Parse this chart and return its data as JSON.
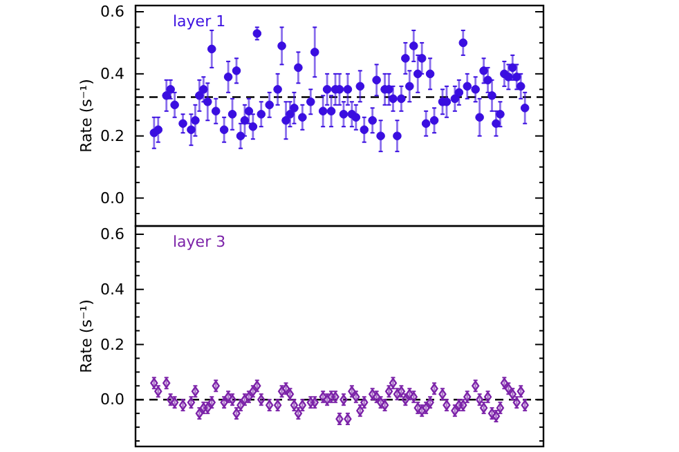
{
  "chart_data": [
    {
      "type": "scatter",
      "ylabel": "Rate (s⁻¹)",
      "categories": [
        null,
        null,
        null,
        null,
        null,
        null,
        null,
        null,
        null,
        null,
        null,
        null,
        null,
        null,
        null,
        null,
        null,
        null,
        null,
        null,
        null,
        null,
        null,
        null,
        null,
        null,
        null,
        null,
        null,
        null,
        null,
        null,
        null,
        null,
        null,
        null,
        null,
        null,
        null,
        null,
        null,
        null,
        null,
        null,
        null,
        null,
        null,
        null,
        null,
        null,
        null,
        null,
        null,
        null,
        null,
        null,
        null,
        null,
        null,
        null,
        null,
        null,
        null,
        null,
        null,
        null,
        null,
        null,
        null,
        null,
        null,
        null,
        null,
        null,
        null,
        null,
        null,
        null,
        null,
        null,
        null,
        null,
        null,
        null,
        null,
        null,
        null,
        null,
        null,
        null,
        null,
        null,
        null,
        null,
        null,
        null,
        null,
        null,
        null
      ],
      "series": [
        {
          "name": "layer 1",
          "color": "#3a0ee0",
          "values": [
            null,
            null,
            null,
            null,
            0.21,
            0.22,
            null,
            0.33,
            0.35,
            0.3,
            null,
            0.24,
            null,
            0.22,
            0.25,
            0.33,
            0.35,
            0.31,
            0.48,
            0.28,
            null,
            0.22,
            0.39,
            0.27,
            0.41,
            0.2,
            0.25,
            0.28,
            0.23,
            0.53,
            0.27,
            null,
            0.3,
            null,
            0.35,
            0.49,
            0.25,
            0.27,
            0.29,
            0.42,
            0.26,
            null,
            0.31,
            0.47,
            null,
            0.28,
            0.35,
            0.28,
            0.35,
            0.35,
            0.27,
            0.35,
            0.27,
            0.26,
            0.36,
            0.22,
            null,
            0.25,
            0.38,
            0.2,
            0.35,
            0.35,
            0.32,
            0.2,
            0.32,
            0.45,
            0.36,
            0.49,
            0.4,
            0.45,
            0.24,
            0.4,
            0.25,
            null,
            0.31,
            0.31,
            null,
            0.32,
            0.34,
            0.5,
            0.36,
            null,
            0.35,
            0.26,
            0.41,
            0.38,
            0.33,
            0.24,
            0.27,
            0.4,
            0.39,
            0.42,
            0.39,
            0.36,
            0.29,
            null,
            null,
            null,
            null
          ],
          "errors": [
            null,
            null,
            null,
            null,
            0.05,
            0.04,
            null,
            0.05,
            0.03,
            0.04,
            null,
            0.03,
            null,
            0.05,
            0.05,
            0.05,
            0.04,
            0.06,
            0.06,
            0.04,
            null,
            0.04,
            0.05,
            0.05,
            0.04,
            0.04,
            0.05,
            0.04,
            0.04,
            0.02,
            0.04,
            null,
            0.04,
            null,
            0.05,
            0.06,
            0.06,
            0.04,
            0.05,
            0.05,
            0.04,
            null,
            0.04,
            0.08,
            null,
            0.05,
            0.05,
            0.05,
            0.05,
            0.05,
            0.04,
            0.05,
            0.04,
            0.04,
            0.05,
            0.04,
            null,
            0.04,
            0.05,
            0.05,
            0.05,
            0.05,
            0.04,
            0.05,
            0.04,
            0.05,
            0.05,
            0.05,
            0.06,
            0.05,
            0.04,
            0.05,
            0.04,
            null,
            0.04,
            0.05,
            null,
            0.04,
            0.04,
            0.04,
            0.04,
            null,
            0.04,
            0.06,
            0.04,
            0.04,
            0.05,
            0.04,
            0.04,
            0.04,
            0.04,
            0.04,
            0.04,
            0.04,
            0.05,
            null,
            null,
            null,
            null
          ]
        }
      ],
      "ylim": [
        -0.09,
        0.62
      ],
      "yticks": [
        {
          "value": -0.05,
          "label": null
        },
        {
          "value": 0,
          "label": "0.0"
        },
        {
          "value": 0.05,
          "label": null
        },
        {
          "value": 0.1,
          "label": null
        },
        {
          "value": 0.15,
          "label": null
        },
        {
          "value": 0.2,
          "label": "0.2"
        },
        {
          "value": 0.25,
          "label": null
        },
        {
          "value": 0.3,
          "label": null
        },
        {
          "value": 0.35,
          "label": null
        },
        {
          "value": 0.4,
          "label": "0.4"
        },
        {
          "value": 0.45,
          "label": null
        },
        {
          "value": 0.5,
          "label": null
        },
        {
          "value": 0.55,
          "label": null
        },
        {
          "value": 0.6,
          "label": "0.6"
        }
      ],
      "ref_lines": [
        {
          "axis": "y",
          "value": 0.325,
          "line_style": "dashed",
          "color": "#000000"
        }
      ],
      "marker": "circle",
      "grid": false,
      "tick_labels": "y"
    },
    {
      "type": "scatter",
      "ylabel": "Rate (s⁻¹)",
      "categories": [
        null,
        null,
        null,
        null,
        null,
        null,
        null,
        null,
        null,
        null,
        null,
        null,
        null,
        null,
        null,
        null,
        null,
        null,
        null,
        null,
        null,
        null,
        null,
        null,
        null,
        null,
        null,
        null,
        null,
        null,
        null,
        null,
        null,
        null,
        null,
        null,
        null,
        null,
        null,
        null,
        null,
        null,
        null,
        null,
        null,
        null,
        null,
        null,
        null,
        null,
        null,
        null,
        null,
        null,
        null,
        null,
        null,
        null,
        null,
        null,
        null,
        null,
        null,
        null,
        null,
        null,
        null,
        null,
        null,
        null,
        null,
        null,
        null,
        null,
        null,
        null,
        null,
        null,
        null,
        null,
        null,
        null,
        null,
        null,
        null,
        null,
        null,
        null,
        null,
        null,
        null,
        null,
        null,
        null,
        null,
        null,
        null,
        null,
        null
      ],
      "series": [
        {
          "name": "layer 3",
          "color": "#7b22a8",
          "values": [
            null,
            null,
            null,
            null,
            0.06,
            0.03,
            null,
            0.06,
            0.0,
            -0.01,
            null,
            -0.02,
            null,
            -0.01,
            0.03,
            -0.05,
            -0.03,
            -0.03,
            -0.01,
            0.05,
            null,
            -0.01,
            0.01,
            0.0,
            -0.05,
            -0.02,
            0.0,
            0.01,
            0.03,
            0.05,
            0.0,
            null,
            -0.02,
            null,
            -0.02,
            0.03,
            0.04,
            0.02,
            -0.02,
            -0.05,
            -0.02,
            null,
            -0.01,
            -0.01,
            null,
            0.01,
            0.0,
            0.01,
            0.01,
            -0.07,
            0.0,
            -0.07,
            0.03,
            0.01,
            -0.04,
            -0.01,
            null,
            0.02,
            0.01,
            -0.01,
            -0.02,
            0.03,
            0.06,
            0.02,
            0.03,
            0.0,
            0.02,
            0.01,
            -0.03,
            -0.04,
            -0.03,
            -0.01,
            0.04,
            null,
            0.02,
            -0.02,
            null,
            -0.04,
            -0.02,
            -0.02,
            0.01,
            null,
            0.05,
            0.0,
            -0.03,
            0.01,
            -0.05,
            -0.06,
            -0.03,
            0.06,
            0.04,
            0.02,
            -0.01,
            0.03,
            -0.02,
            null,
            null,
            null,
            null
          ],
          "errors": [
            null,
            null,
            null,
            null,
            0.02,
            0.02,
            null,
            0.02,
            0.02,
            0.02,
            null,
            0.02,
            null,
            0.02,
            0.02,
            0.02,
            0.02,
            0.02,
            0.02,
            0.02,
            null,
            0.02,
            0.02,
            0.02,
            0.02,
            0.02,
            0.02,
            0.02,
            0.02,
            0.02,
            0.02,
            null,
            0.02,
            null,
            0.02,
            0.02,
            0.02,
            0.02,
            0.02,
            0.02,
            0.02,
            null,
            0.02,
            0.02,
            null,
            0.02,
            0.02,
            0.02,
            0.02,
            0.02,
            0.02,
            0.02,
            0.02,
            0.02,
            0.02,
            0.02,
            null,
            0.02,
            0.02,
            0.02,
            0.02,
            0.02,
            0.02,
            0.02,
            0.02,
            0.02,
            0.02,
            0.02,
            0.02,
            0.02,
            0.02,
            0.02,
            0.02,
            null,
            0.02,
            0.02,
            null,
            0.02,
            0.02,
            0.02,
            0.02,
            null,
            0.02,
            0.02,
            0.02,
            0.02,
            0.02,
            0.02,
            0.02,
            0.02,
            0.02,
            0.02,
            0.02,
            0.02,
            0.02,
            null,
            null,
            null,
            null
          ]
        }
      ],
      "ylim": [
        -0.17,
        0.63
      ],
      "yticks": [
        {
          "value": -0.15,
          "label": null
        },
        {
          "value": -0.1,
          "label": null
        },
        {
          "value": -0.05,
          "label": null
        },
        {
          "value": 0,
          "label": "0.0"
        },
        {
          "value": 0.05,
          "label": null
        },
        {
          "value": 0.1,
          "label": null
        },
        {
          "value": 0.15,
          "label": null
        },
        {
          "value": 0.2,
          "label": "0.2"
        },
        {
          "value": 0.25,
          "label": null
        },
        {
          "value": 0.3,
          "label": null
        },
        {
          "value": 0.35,
          "label": null
        },
        {
          "value": 0.4,
          "label": "0.4"
        },
        {
          "value": 0.45,
          "label": null
        },
        {
          "value": 0.5,
          "label": null
        },
        {
          "value": 0.55,
          "label": null
        },
        {
          "value": 0.6,
          "label": "0.6"
        }
      ],
      "ref_lines": [
        {
          "axis": "y",
          "value": 0,
          "line_style": "dashed",
          "color": "#000000"
        }
      ],
      "marker": "diamond",
      "grid": false,
      "tick_labels": "y"
    }
  ]
}
